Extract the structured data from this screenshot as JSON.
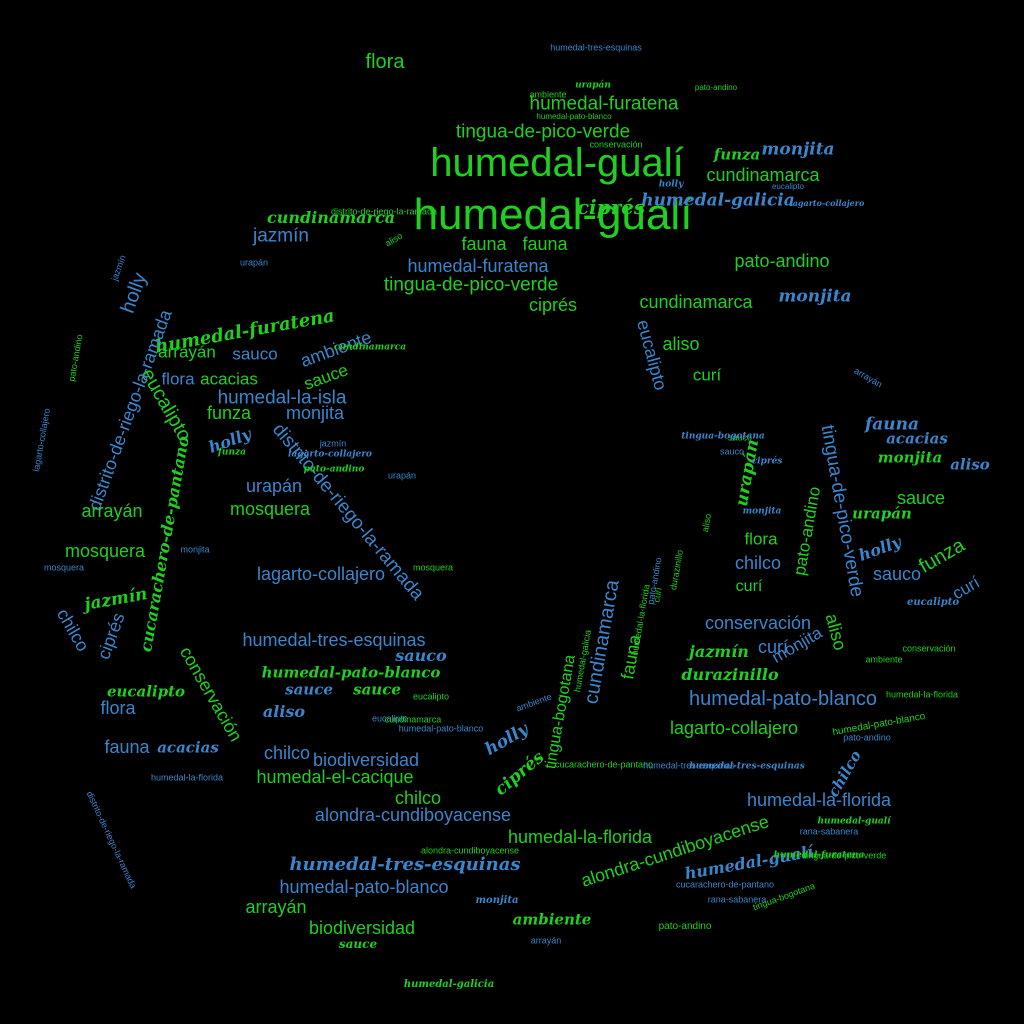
{
  "colors": {
    "background": "#000000",
    "green": "#1fd01f",
    "blue": "#3a86cc"
  },
  "words": [
    {
      "text": "humedal-gualí",
      "color": "green"
    },
    {
      "text": "humedal-gualí",
      "color": "green"
    },
    {
      "text": "flora",
      "color": "green"
    },
    {
      "text": "humedal-tres-esquinas",
      "color": "blue"
    },
    {
      "text": "humedal-furatena",
      "color": "green"
    },
    {
      "text": "humedal-pato-blanco",
      "color": "green"
    },
    {
      "text": "ambiente",
      "color": "green"
    },
    {
      "text": "urapán",
      "color": "green"
    },
    {
      "text": "pato-andino",
      "color": "green"
    },
    {
      "text": "tingua-de-pico-verde",
      "color": "green"
    },
    {
      "text": "conservación",
      "color": "green"
    },
    {
      "text": "funza",
      "color": "green"
    },
    {
      "text": "monjita",
      "color": "blue"
    },
    {
      "text": "cundinamarca",
      "color": "green"
    },
    {
      "text": "holly",
      "color": "blue"
    },
    {
      "text": "eucalipto",
      "color": "blue"
    },
    {
      "text": "humedal-galicia",
      "color": "blue"
    },
    {
      "text": "lagarto-collajero",
      "color": "blue"
    },
    {
      "text": "ciprés",
      "color": "green"
    },
    {
      "text": "cundinamarca",
      "color": "green"
    },
    {
      "text": "jazmín",
      "color": "blue"
    },
    {
      "text": "fauna",
      "color": "green"
    },
    {
      "text": "fauna",
      "color": "green"
    },
    {
      "text": "urapán",
      "color": "blue"
    },
    {
      "text": "humedal-furatena",
      "color": "blue"
    },
    {
      "text": "tingua-de-pico-verde",
      "color": "green"
    },
    {
      "text": "pato-andino",
      "color": "green"
    },
    {
      "text": "ciprés",
      "color": "green"
    },
    {
      "text": "cundinamarca",
      "color": "green"
    },
    {
      "text": "monjita",
      "color": "blue"
    },
    {
      "text": "holly",
      "color": "blue"
    },
    {
      "text": "jazmín",
      "color": "blue"
    },
    {
      "text": "pato-andino",
      "color": "green"
    },
    {
      "text": "humedal-furatena",
      "color": "green"
    },
    {
      "text": "arrayán",
      "color": "green"
    },
    {
      "text": "sauco",
      "color": "blue"
    },
    {
      "text": "ambiente",
      "color": "blue"
    },
    {
      "text": "aliso",
      "color": "green"
    },
    {
      "text": "eucalipto",
      "color": "blue"
    },
    {
      "text": "flora",
      "color": "blue"
    },
    {
      "text": "acacias",
      "color": "green"
    },
    {
      "text": "sauce",
      "color": "green"
    },
    {
      "text": "curí",
      "color": "green"
    },
    {
      "text": "humedal-la-isla",
      "color": "blue"
    },
    {
      "text": "eucalipto",
      "color": "green"
    },
    {
      "text": "funza",
      "color": "green"
    },
    {
      "text": "monjita",
      "color": "blue"
    },
    {
      "text": "holly",
      "color": "blue"
    },
    {
      "text": "distrito-de-riego-la-ramada",
      "color": "blue"
    },
    {
      "text": "distrito-de-riego-la-ramada",
      "color": "blue"
    },
    {
      "text": "lagarto-collajero",
      "color": "blue"
    },
    {
      "text": "distrito-de-riego-la-ramada",
      "color": "blue"
    },
    {
      "text": "cucarachero-de-pantano",
      "color": "green"
    },
    {
      "text": "urapán",
      "color": "blue"
    },
    {
      "text": "arrayán",
      "color": "green"
    },
    {
      "text": "mosquera",
      "color": "green"
    },
    {
      "text": "mosquera",
      "color": "green"
    },
    {
      "text": "mosquera",
      "color": "blue"
    },
    {
      "text": "lagarto-collajero",
      "color": "blue"
    },
    {
      "text": "tingua-de-pico-verde",
      "color": "blue"
    },
    {
      "text": "fauna",
      "color": "blue"
    },
    {
      "text": "acacias",
      "color": "blue"
    },
    {
      "text": "monjita",
      "color": "green"
    },
    {
      "text": "aliso",
      "color": "blue"
    },
    {
      "text": "sauce",
      "color": "green"
    },
    {
      "text": "urapán",
      "color": "green"
    },
    {
      "text": "funza",
      "color": "green"
    },
    {
      "text": "pato-andino",
      "color": "green"
    },
    {
      "text": "flora",
      "color": "green"
    },
    {
      "text": "chilco",
      "color": "blue"
    },
    {
      "text": "holly",
      "color": "blue"
    },
    {
      "text": "sauco",
      "color": "blue"
    },
    {
      "text": "urapán",
      "color": "green"
    },
    {
      "text": "curí",
      "color": "blue"
    },
    {
      "text": "curí",
      "color": "green"
    },
    {
      "text": "jazmín",
      "color": "green"
    },
    {
      "text": "chilco",
      "color": "blue"
    },
    {
      "text": "ciprés",
      "color": "blue"
    },
    {
      "text": "conservación",
      "color": "green"
    },
    {
      "text": "humedal-tres-esquinas",
      "color": "blue"
    },
    {
      "text": "cundinamarca",
      "color": "blue"
    },
    {
      "text": "fauna",
      "color": "green"
    },
    {
      "text": "conservación",
      "color": "blue"
    },
    {
      "text": "jazmín",
      "color": "green"
    },
    {
      "text": "curí",
      "color": "blue"
    },
    {
      "text": "monjita",
      "color": "blue"
    },
    {
      "text": "aliso",
      "color": "green"
    },
    {
      "text": "humedal-pato-blanco",
      "color": "green"
    },
    {
      "text": "sauco",
      "color": "blue"
    },
    {
      "text": "sauce",
      "color": "blue"
    },
    {
      "text": "sauce",
      "color": "green"
    },
    {
      "text": "eucalipto",
      "color": "green"
    },
    {
      "text": "flora",
      "color": "blue"
    },
    {
      "text": "aliso",
      "color": "blue"
    },
    {
      "text": "durazinillo",
      "color": "green"
    },
    {
      "text": "humedal-pato-blanco",
      "color": "blue"
    },
    {
      "text": "lagarto-collajero",
      "color": "green"
    },
    {
      "text": "tingua-bogotana",
      "color": "green"
    },
    {
      "text": "fauna",
      "color": "blue"
    },
    {
      "text": "acacias",
      "color": "blue"
    },
    {
      "text": "chilco",
      "color": "blue"
    },
    {
      "text": "biodiversidad",
      "color": "blue"
    },
    {
      "text": "humedal-el-cacique",
      "color": "green"
    },
    {
      "text": "holly",
      "color": "blue"
    },
    {
      "text": "ciprés",
      "color": "green"
    },
    {
      "text": "chilco",
      "color": "green"
    },
    {
      "text": "alondra-cundiboyacense",
      "color": "blue"
    },
    {
      "text": "humedal-la-florida",
      "color": "blue"
    },
    {
      "text": "rana-sabanera",
      "color": "blue"
    },
    {
      "text": "chilco",
      "color": "blue"
    },
    {
      "text": "humedal-la-florida",
      "color": "green"
    },
    {
      "text": "alondra-cundiboyacense",
      "color": "green"
    },
    {
      "text": "humedal-tres-esquinas",
      "color": "blue"
    },
    {
      "text": "humedal-gualí",
      "color": "blue"
    },
    {
      "text": "humedal-pato-blanco",
      "color": "blue"
    },
    {
      "text": "arrayán",
      "color": "green"
    },
    {
      "text": "ambiente",
      "color": "green"
    },
    {
      "text": "biodiversidad",
      "color": "green"
    },
    {
      "text": "sauce",
      "color": "green"
    },
    {
      "text": "humedal-la-florida",
      "color": "blue"
    },
    {
      "text": "humedal-galicia",
      "color": "green"
    },
    {
      "text": "monjita",
      "color": "blue"
    },
    {
      "text": "arrayán",
      "color": "blue"
    },
    {
      "text": "pato-andino",
      "color": "green"
    },
    {
      "text": "conservación",
      "color": "green"
    },
    {
      "text": "eucalipto",
      "color": "blue"
    },
    {
      "text": "humedal-pato-blanco",
      "color": "green"
    },
    {
      "text": "ambiente",
      "color": "green"
    },
    {
      "text": "humedal-la-florida",
      "color": "green"
    },
    {
      "text": "pato-andino",
      "color": "blue"
    },
    {
      "text": "eucalipto",
      "color": "blue"
    },
    {
      "text": "humedal-gualí",
      "color": "green"
    },
    {
      "text": "cucarachero-de-pantano",
      "color": "blue"
    },
    {
      "text": "tingua-bogotana",
      "color": "green"
    },
    {
      "text": "alondra-cundiboyacense",
      "color": "green"
    },
    {
      "text": "monjita",
      "color": "blue"
    },
    {
      "text": "mosquera",
      "color": "green"
    },
    {
      "text": "funza",
      "color": "green"
    },
    {
      "text": "jazmín",
      "color": "blue"
    },
    {
      "text": "lagarto-collajero",
      "color": "blue"
    },
    {
      "text": "pato-andino",
      "color": "green"
    },
    {
      "text": "urapán",
      "color": "blue"
    },
    {
      "text": "sauco",
      "color": "green"
    },
    {
      "text": "eucalipto",
      "color": "green"
    },
    {
      "text": "sauco",
      "color": "blue"
    },
    {
      "text": "arrayán",
      "color": "blue"
    },
    {
      "text": "cundinamarca",
      "color": "green"
    },
    {
      "text": "ambiente",
      "color": "blue"
    },
    {
      "text": "aliso",
      "color": "green"
    },
    {
      "text": "humedal-furatena",
      "color": "green"
    },
    {
      "text": "humedal-la-florida",
      "color": "green"
    },
    {
      "text": "tingua-de-pico-verde",
      "color": "green"
    },
    {
      "text": "rana-sabanera",
      "color": "blue"
    },
    {
      "text": "monjita",
      "color": "blue"
    },
    {
      "text": "cundinamarca",
      "color": "green"
    },
    {
      "text": "humedal-galicia",
      "color": "green"
    },
    {
      "text": "tingua-bogotana",
      "color": "blue"
    },
    {
      "text": "ciprés",
      "color": "blue"
    },
    {
      "text": "aliso",
      "color": "green"
    },
    {
      "text": "curí",
      "color": "green"
    },
    {
      "text": "pato-andino",
      "color": "blue"
    },
    {
      "text": "durazinillo",
      "color": "green"
    },
    {
      "text": "cucarachero-de-pantano",
      "color": "green"
    },
    {
      "text": "humedal-tres-esquinas",
      "color": "blue"
    },
    {
      "text": "humedal-tres-esquinas",
      "color": "blue"
    },
    {
      "text": "humedal-pato-blanco",
      "color": "blue"
    },
    {
      "text": "distrito-de-riego-la-ramada",
      "color": "green"
    }
  ]
}
